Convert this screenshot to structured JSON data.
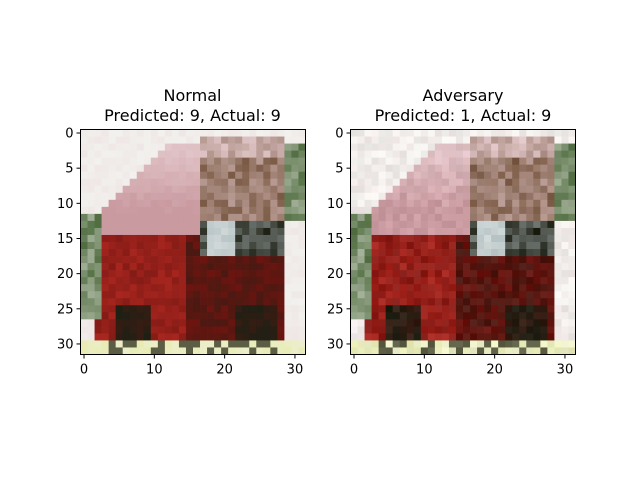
{
  "panels": [
    {
      "title": "Normal",
      "subtitle": "Predicted: 9, Actual: 9",
      "image_variant": "normal"
    },
    {
      "title": "Adversary",
      "subtitle": "Predicted: 1, Actual: 9",
      "image_variant": "adversarial"
    }
  ],
  "axes": {
    "x_ticks": [
      "0",
      "10",
      "20",
      "30"
    ],
    "y_ticks": [
      "0",
      "5",
      "10",
      "15",
      "20",
      "25",
      "30"
    ],
    "x_tick_values": [
      0,
      10,
      20,
      30
    ],
    "y_tick_values": [
      0,
      5,
      10,
      15,
      20,
      25,
      30
    ],
    "image_size": 32
  },
  "image": {
    "subject": "truck-photo",
    "colors": {
      "sky": "#f2f1ee",
      "cab_red": "#a8261f",
      "cab_dark": "#6e1410",
      "box_pink": "#c99aa0",
      "box_top": "#e4c9cc",
      "cargo_brown": "#7a5a44",
      "window": "#b9c6c8",
      "tree_green": "#4d6a3c",
      "ground": "#e8ecb4",
      "tire": "#1e2014"
    }
  }
}
